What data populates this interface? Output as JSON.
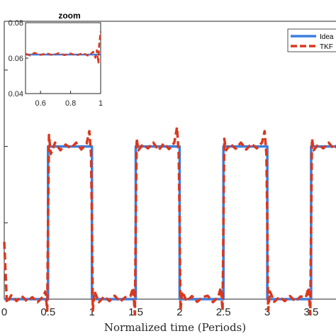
{
  "chart_data": [
    {
      "type": "line",
      "xlabel": "Normalized time (Periods)",
      "ylabel": "",
      "xlim": [
        0,
        3.8
      ],
      "ylim": [
        0.0,
        0.07
      ],
      "xticks": [
        0,
        0.5,
        1,
        1.5,
        2,
        2.5,
        3,
        3.5
      ],
      "xtick_labels": [
        "0",
        "0.5",
        "1",
        "1.5",
        "2",
        "2.5",
        "3",
        "3.5"
      ],
      "ideal_levels": {
        "low": 0.0,
        "high": 0.04
      },
      "legend": {
        "placement": "top-right",
        "entries": [
          "Idea",
          "TKF"
        ]
      },
      "series": [
        {
          "name": "Idea",
          "color": "#3b7fe0",
          "style": "solid",
          "x": [
            0,
            0.5,
            0.5,
            1,
            1,
            1.5,
            1.5,
            2,
            2,
            2.5,
            2.5,
            3,
            3,
            3.5,
            3.5,
            3.8
          ],
          "y": [
            0.0,
            0.0,
            0.04,
            0.04,
            0.0,
            0.0,
            0.04,
            0.04,
            0.0,
            0.0,
            0.04,
            0.04,
            0.0,
            0.0,
            0.04,
            0.04
          ]
        },
        {
          "name": "TKF",
          "color": "#d9381e",
          "style": "dashed",
          "x": [
            0,
            0.03,
            0.08,
            0.14,
            0.2,
            0.26,
            0.32,
            0.38,
            0.44,
            0.47,
            0.49,
            0.5,
            0.51,
            0.53,
            0.58,
            0.64,
            0.7,
            0.76,
            0.82,
            0.88,
            0.94,
            0.97,
            0.99,
            1.0,
            1.01,
            1.03,
            1.08,
            1.14,
            1.2,
            1.26,
            1.32,
            1.38,
            1.44,
            1.47,
            1.49,
            1.5,
            1.51,
            1.53,
            1.58,
            1.64,
            1.7,
            1.76,
            1.82,
            1.88,
            1.94,
            1.97,
            1.99,
            2.0,
            2.01,
            2.03,
            2.08,
            2.14,
            2.2,
            2.26,
            2.32,
            2.38,
            2.44,
            2.47,
            2.49,
            2.5,
            2.51,
            2.53,
            2.58,
            2.64,
            2.7,
            2.76,
            2.82,
            2.88,
            2.94,
            2.97,
            2.99,
            3.0,
            3.01,
            3.03,
            3.08,
            3.14,
            3.2,
            3.26,
            3.32,
            3.38,
            3.44,
            3.47,
            3.49,
            3.5,
            3.51,
            3.53,
            3.58,
            3.64,
            3.7,
            3.76,
            3.8
          ],
          "y": [
            0.015,
            -0.001,
            0.001,
            -0.0005,
            0.0008,
            -0.0006,
            0.0005,
            -0.0008,
            0.0006,
            0.002,
            -0.003,
            0.02,
            0.043,
            0.038,
            0.041,
            0.039,
            0.0405,
            0.0395,
            0.041,
            0.0392,
            0.0408,
            0.044,
            0.038,
            0.02,
            -0.003,
            0.002,
            -0.0008,
            0.0007,
            -0.0005,
            0.0009,
            -0.0007,
            0.0005,
            0.0008,
            0.003,
            -0.004,
            0.02,
            0.042,
            0.039,
            0.0405,
            0.0395,
            0.041,
            0.039,
            0.0408,
            0.0393,
            0.041,
            0.045,
            0.038,
            0.02,
            -0.003,
            0.002,
            -0.0006,
            0.0008,
            -0.0007,
            0.0005,
            0.0009,
            -0.0008,
            0.0006,
            0.003,
            -0.003,
            0.02,
            0.042,
            0.039,
            0.0406,
            0.0394,
            0.041,
            0.0392,
            0.0407,
            0.0395,
            0.041,
            0.044,
            0.038,
            0.02,
            -0.003,
            0.002,
            -0.0007,
            0.0006,
            -0.0005,
            0.0008,
            -0.0006,
            0.0007,
            0.0005,
            0.003,
            -0.004,
            0.02,
            0.042,
            0.039,
            0.0405,
            0.0395,
            0.041,
            0.0393,
            0.0405
          ]
        }
      ]
    },
    {
      "type": "line",
      "title": "zoom",
      "xlim": [
        0.5,
        1.0
      ],
      "ylim": [
        0.04,
        0.08
      ],
      "xticks": [
        0.6,
        0.8,
        1
      ],
      "xtick_labels": [
        "0.6",
        "0.8",
        "1"
      ],
      "yticks": [
        0.04,
        0.06,
        0.08
      ],
      "ytick_labels": [
        "0.04",
        "0.06",
        "0.08"
      ],
      "series": [
        {
          "name": "Idea",
          "color": "#3b7fe0",
          "style": "solid",
          "x": [
            0.5,
            1.0
          ],
          "y": [
            0.062,
            0.062
          ]
        },
        {
          "name": "TKF",
          "color": "#d9381e",
          "style": "dashed",
          "x": [
            0.5,
            0.53,
            0.56,
            0.6,
            0.64,
            0.68,
            0.72,
            0.76,
            0.8,
            0.84,
            0.88,
            0.92,
            0.95,
            0.965,
            0.975,
            0.985,
            0.99,
            1.0
          ],
          "y": [
            0.0625,
            0.0615,
            0.063,
            0.0618,
            0.0627,
            0.0616,
            0.0628,
            0.0617,
            0.0626,
            0.0615,
            0.0629,
            0.0612,
            0.0636,
            0.0602,
            0.0645,
            0.057,
            0.068,
            0.075
          ]
        }
      ]
    }
  ]
}
